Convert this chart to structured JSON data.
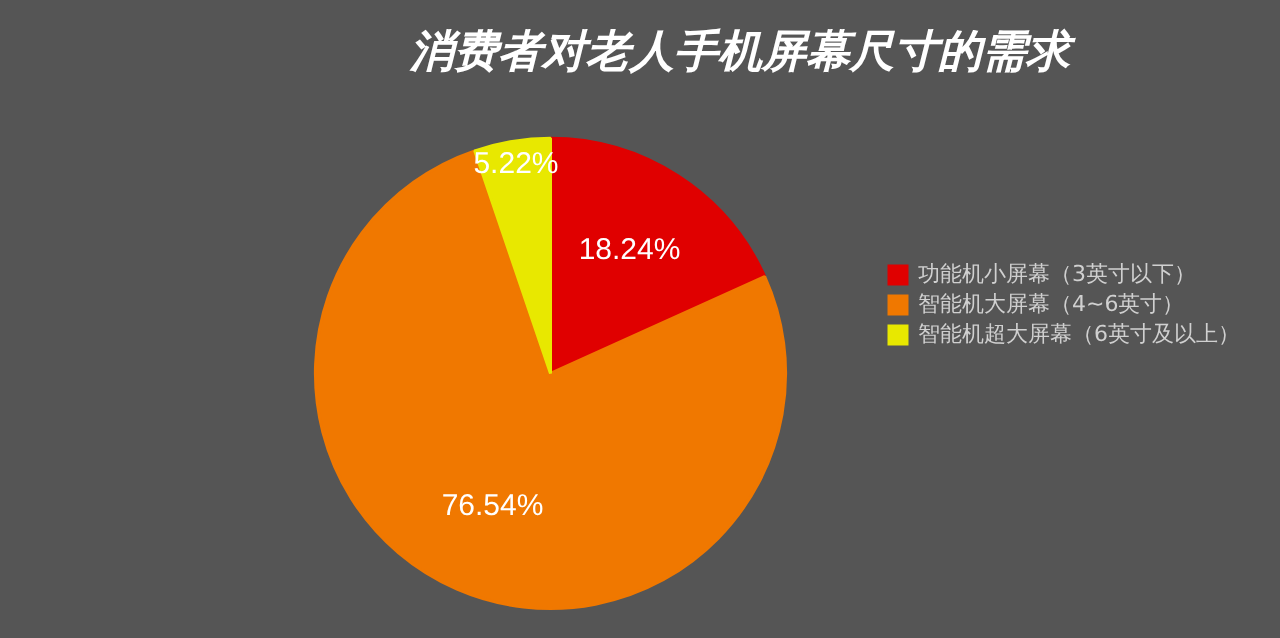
{
  "chart_data": {
    "type": "pie",
    "title": "消费者对老人手机屏幕尺寸的需求",
    "categories": [
      "功能机小屏幕（3英寸以下）",
      "智能机大屏幕（4~6英寸）",
      "智能机超大屏幕（6英寸及以上）"
    ],
    "values": [
      18.24,
      76.54,
      5.22
    ],
    "colors": [
      "#e00000",
      "#f07800",
      "#e8e800"
    ],
    "value_labels": [
      "18.24%",
      "76.54%",
      "5.22%"
    ],
    "legend": "right"
  }
}
